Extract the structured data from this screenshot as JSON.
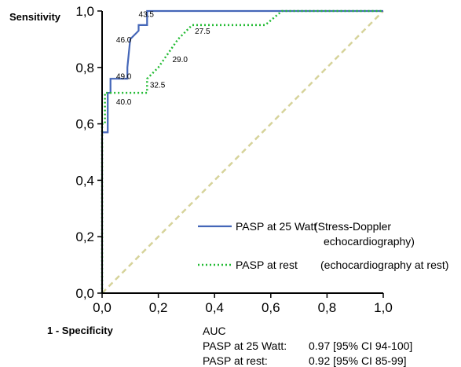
{
  "chart_data": {
    "type": "line",
    "xlabel": "1 - Specificity",
    "ylabel": "Sensitivity",
    "xlim": [
      0,
      1
    ],
    "ylim": [
      0,
      1
    ],
    "x_ticks": [
      "0,0",
      "0,2",
      "0,4",
      "0,6",
      "0,8",
      "1,0"
    ],
    "y_ticks": [
      "0,0",
      "0,2",
      "0,4",
      "0,6",
      "0,8",
      "1,0"
    ],
    "grid": false,
    "series": [
      {
        "name": "PASP at 25 Watt (Stress-Doppler echocardiography)",
        "style": "solid",
        "color": "#4466b8",
        "points": [
          [
            0,
            0
          ],
          [
            0,
            0.57
          ],
          [
            0.02,
            0.57
          ],
          [
            0.02,
            0.71
          ],
          [
            0.03,
            0.71
          ],
          [
            0.03,
            0.76
          ],
          [
            0.06,
            0.76
          ],
          [
            0.06,
            0.76
          ],
          [
            0.09,
            0.76
          ],
          [
            0.09,
            0.8
          ],
          [
            0.1,
            0.9
          ],
          [
            0.13,
            0.93
          ],
          [
            0.13,
            0.95
          ],
          [
            0.16,
            0.95
          ],
          [
            0.16,
            1.0
          ],
          [
            1.0,
            1.0
          ]
        ]
      },
      {
        "name": "PASP at rest (echocardiography at rest)",
        "style": "dotted",
        "color": "#22bb33",
        "points": [
          [
            0,
            0
          ],
          [
            0,
            0.6
          ],
          [
            0.01,
            0.6
          ],
          [
            0.01,
            0.71
          ],
          [
            0.16,
            0.71
          ],
          [
            0.16,
            0.76
          ],
          [
            0.2,
            0.8
          ],
          [
            0.27,
            0.9
          ],
          [
            0.32,
            0.95
          ],
          [
            0.58,
            0.95
          ],
          [
            0.64,
            1.0
          ],
          [
            1.0,
            1.0
          ]
        ]
      },
      {
        "name": "reference",
        "style": "dashed",
        "color": "#d6d39a",
        "points": [
          [
            0,
            0
          ],
          [
            1,
            1
          ]
        ]
      }
    ],
    "annotations": [
      {
        "text": "43.5",
        "x": 0.13,
        "y": 0.99
      },
      {
        "text": "46.0",
        "x": 0.05,
        "y": 0.9
      },
      {
        "text": "49.0",
        "x": 0.05,
        "y": 0.77
      },
      {
        "text": "40.0",
        "x": 0.05,
        "y": 0.68
      },
      {
        "text": "27.5",
        "x": 0.33,
        "y": 0.93
      },
      {
        "text": "29.0",
        "x": 0.25,
        "y": 0.83
      },
      {
        "text": "32.5",
        "x": 0.17,
        "y": 0.74
      }
    ],
    "legend": {
      "position": "bottom-right",
      "entries": [
        {
          "label": "PASP at 25 Watt",
          "detail_line1": "(Stress-Doppler",
          "detail_line2": "echocardiography)",
          "style": "solid",
          "color": "#4466b8"
        },
        {
          "label": "PASP at rest",
          "detail_line1": "(echocardiography at rest)",
          "detail_line2": "",
          "style": "dotted",
          "color": "#22bb33"
        }
      ]
    }
  },
  "auc": {
    "heading": "AUC",
    "rows": [
      {
        "label": "PASP at 25 Watt:",
        "value": "0.97 [95% CI 94-100]"
      },
      {
        "label": "PASP at rest:",
        "value": "0.92 [95% CI 85-99]"
      }
    ]
  }
}
